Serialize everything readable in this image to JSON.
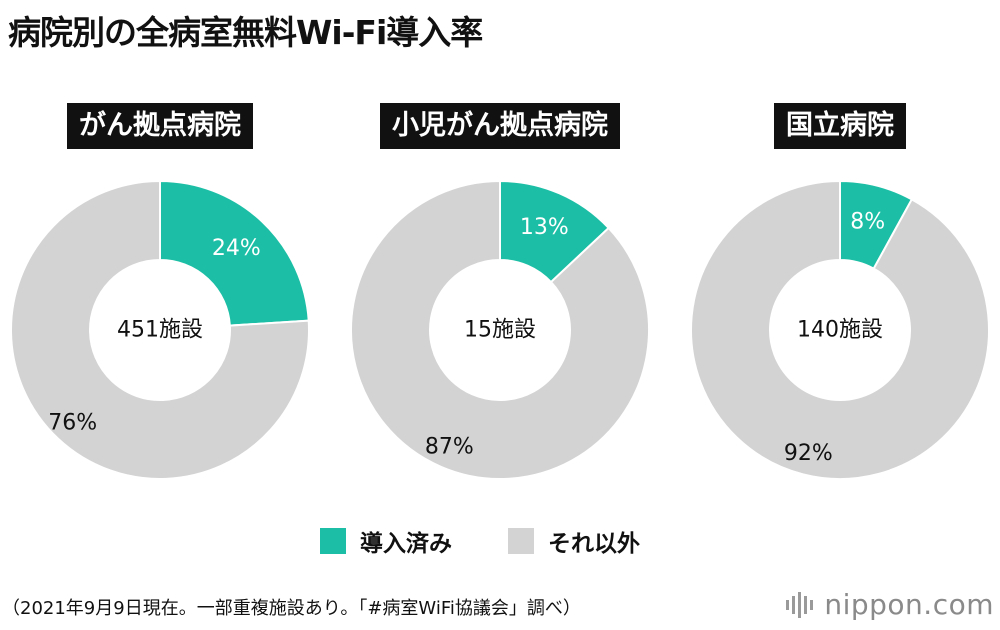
{
  "title": "病院別の全病室無料Wi-Fi導入率",
  "chart_data": [
    {
      "type": "pie",
      "title": "がん拠点病院",
      "center_label": "451施設",
      "slices": [
        {
          "label": "導入済み",
          "value": 24,
          "text": "24%"
        },
        {
          "label": "それ以外",
          "value": 76,
          "text": "76%"
        }
      ]
    },
    {
      "type": "pie",
      "title": "小児がん拠点病院",
      "center_label": "15施設",
      "slices": [
        {
          "label": "導入済み",
          "value": 13,
          "text": "13%"
        },
        {
          "label": "それ以外",
          "value": 87,
          "text": "87%"
        }
      ]
    },
    {
      "type": "pie",
      "title": "国立病院",
      "center_label": "140施設",
      "slices": [
        {
          "label": "導入済み",
          "value": 8,
          "text": "8%"
        },
        {
          "label": "それ以外",
          "value": 92,
          "text": "92%"
        }
      ]
    }
  ],
  "legend": [
    {
      "label": "導入済み",
      "color": "#1cbfa5"
    },
    {
      "label": "それ以外",
      "color": "#d3d3d3"
    }
  ],
  "colors": {
    "introduced": "#1cbfa5",
    "other": "#d3d3d3"
  },
  "note": "（2021年9月9日現在。一部重複施設あり。「#病室WiFi協議会」調べ）",
  "brand": {
    "name": "nippon",
    "suffix": ".com"
  }
}
